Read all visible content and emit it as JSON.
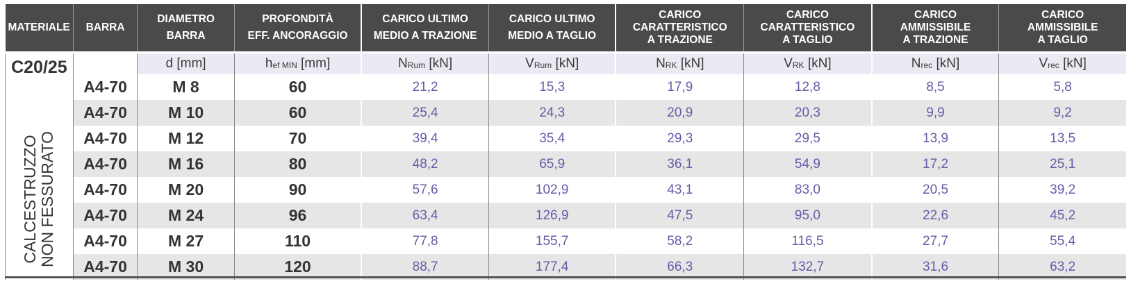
{
  "headers": [
    {
      "lines": [
        "MATERIALE"
      ]
    },
    {
      "lines": [
        "BARRA"
      ]
    },
    {
      "lines": [
        "DIAMETRO",
        "BARRA"
      ]
    },
    {
      "lines": [
        "PROFONDITÀ",
        "EFF. ANCORAGGIO"
      ]
    },
    {
      "lines": [
        "CARICO ULTIMO",
        "MEDIO A TRAZIONE"
      ]
    },
    {
      "lines": [
        "CARICO ULTIMO",
        "MEDIO A TAGLIO"
      ]
    },
    {
      "lines": [
        "CARICO",
        "CARATTERISTICO",
        "A TRAZIONE"
      ]
    },
    {
      "lines": [
        "CARICO",
        "CARATTERISTICO",
        "A TAGLIO"
      ]
    },
    {
      "lines": [
        "CARICO",
        "AMMISSIBILE",
        "A TRAZIONE"
      ]
    },
    {
      "lines": [
        "CARICO",
        "AMMISSIBILE",
        "A TAGLIO"
      ]
    }
  ],
  "units": [
    {
      "sym": "d",
      "sub": "",
      "unit": "[mm]"
    },
    {
      "sym": "h",
      "sub": "ef MIN",
      "unit": "[mm]"
    },
    {
      "sym": "N",
      "sub": "Rum",
      "unit": "[kN]"
    },
    {
      "sym": "V",
      "sub": "Rum",
      "unit": "[kN]"
    },
    {
      "sym": "N",
      "sub": "RK",
      "unit": "[kN]"
    },
    {
      "sym": "V",
      "sub": "RK",
      "unit": "[kN]"
    },
    {
      "sym": "N",
      "sub": "rec",
      "unit": "[kN]"
    },
    {
      "sym": "V",
      "sub": "rec",
      "unit": "[kN]"
    }
  ],
  "material": {
    "grade": "C20/25",
    "type_line1": "CALCESTRUZZO",
    "type_line2": "NON FESSURATO"
  },
  "rows": [
    [
      "A4-70",
      "M 8",
      "60",
      "21,2",
      "15,3",
      "17,9",
      "12,8",
      "8,5",
      "5,8"
    ],
    [
      "A4-70",
      "M 10",
      "60",
      "25,4",
      "24,3",
      "20,9",
      "20,3",
      "9,9",
      "9,2"
    ],
    [
      "A4-70",
      "M 12",
      "70",
      "39,4",
      "35,4",
      "29,3",
      "29,5",
      "13,9",
      "13,5"
    ],
    [
      "A4-70",
      "M 16",
      "80",
      "48,2",
      "65,9",
      "36,1",
      "54,9",
      "17,2",
      "25,1"
    ],
    [
      "A4-70",
      "M 20",
      "90",
      "57,6",
      "102,9",
      "43,1",
      "83,0",
      "20,5",
      "39,2"
    ],
    [
      "A4-70",
      "M 24",
      "96",
      "63,4",
      "126,9",
      "47,5",
      "95,0",
      "22,6",
      "45,2"
    ],
    [
      "A4-70",
      "M 27",
      "110",
      "77,8",
      "155,7",
      "58,2",
      "116,5",
      "27,7",
      "55,4"
    ],
    [
      "A4-70",
      "M 30",
      "120",
      "88,7",
      "177,4",
      "66,3",
      "132,7",
      "31,6",
      "63,2"
    ]
  ]
}
